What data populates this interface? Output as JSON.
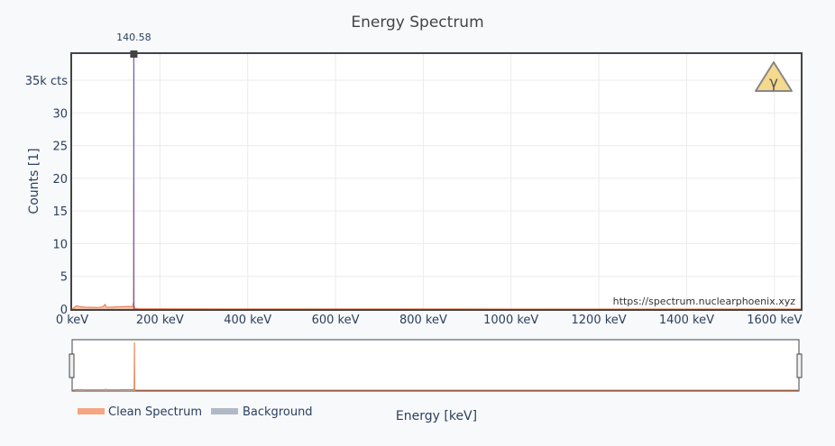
{
  "chart_data": {
    "type": "area",
    "title": "Energy Spectrum",
    "xlabel": "Energy [keV]",
    "ylabel": "Counts [1]",
    "xlim": [
      0,
      1660
    ],
    "ylim": [
      0,
      39000
    ],
    "x_ticks": [
      0,
      200,
      400,
      600,
      800,
      1000,
      1200,
      1400,
      1600
    ],
    "x_tick_labels": [
      "0 keV",
      "200 keV",
      "400 keV",
      "600 keV",
      "800 keV",
      "1000 keV",
      "1200 keV",
      "1400 keV",
      "1600 keV"
    ],
    "y_ticks": [
      0,
      5000,
      10000,
      15000,
      20000,
      25000,
      30000,
      35000
    ],
    "y_tick_labels": [
      "0",
      "5",
      "10",
      "15",
      "20",
      "25",
      "30",
      "35k cts"
    ],
    "grid": true,
    "legend_position": "bottom-left",
    "series": [
      {
        "name": "Clean Spectrum",
        "color": "#f4a582",
        "x": [
          0,
          5,
          10,
          20,
          30,
          40,
          50,
          60,
          70,
          75,
          78,
          80,
          90,
          100,
          110,
          120,
          130,
          138,
          140,
          140.58,
          141,
          143,
          150,
          200,
          400,
          600,
          800,
          1000,
          1200,
          1400,
          1600,
          1660
        ],
        "y": [
          0,
          250,
          500,
          350,
          300,
          280,
          260,
          250,
          320,
          700,
          300,
          280,
          300,
          320,
          340,
          380,
          400,
          380,
          1200,
          39000,
          600,
          100,
          40,
          30,
          20,
          15,
          10,
          8,
          6,
          5,
          5,
          5
        ]
      },
      {
        "name": "Background",
        "color": "#b0b9c6",
        "x": [
          0,
          140,
          140.58,
          141,
          1660
        ],
        "y": [
          0,
          0,
          0,
          0,
          0
        ]
      }
    ],
    "peak_marker": {
      "x": 140.58,
      "label": "140.58"
    },
    "peak_line_color": "#6a5acd",
    "watermark": "https://spectrum.nuclearphoenix.xyz",
    "logo_icon": "gamma-warning-triangle-icon",
    "logo_symbol": "γ"
  }
}
